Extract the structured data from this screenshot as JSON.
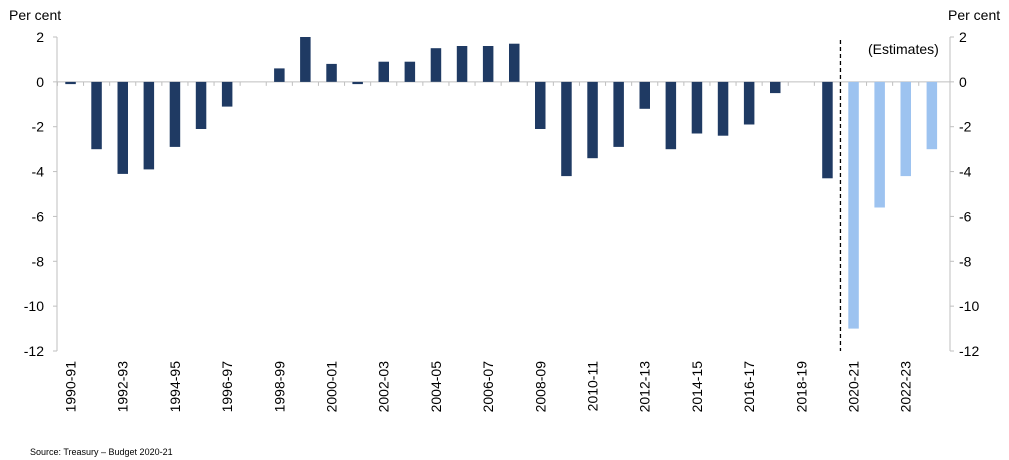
{
  "chart_data": {
    "type": "bar",
    "y_unit_left": "Per cent",
    "y_unit_right": "Per cent",
    "ylim": [
      -12,
      2
    ],
    "yticks": [
      2,
      0,
      -2,
      -4,
      -6,
      -8,
      -10,
      -12
    ],
    "grid": false,
    "legend": "none",
    "annotation": "(Estimates)",
    "categories": [
      "1990-91",
      "1991-92",
      "1992-93",
      "1993-94",
      "1994-95",
      "1995-96",
      "1996-97",
      "1997-98",
      "1998-99",
      "1999-00",
      "2000-01",
      "2001-02",
      "2002-03",
      "2003-04",
      "2004-05",
      "2005-06",
      "2006-07",
      "2007-08",
      "2008-09",
      "2009-10",
      "2010-11",
      "2011-12",
      "2012-13",
      "2013-14",
      "2014-15",
      "2015-16",
      "2016-17",
      "2017-18",
      "2018-19",
      "2019-20",
      "2020-21",
      "2021-22",
      "2022-23",
      "2023-24"
    ],
    "shown_tick_labels": [
      "1990-91",
      "1992-93",
      "1994-95",
      "1996-97",
      "1998-99",
      "2000-01",
      "2002-03",
      "2004-05",
      "2006-07",
      "2008-09",
      "2010-11",
      "2012-13",
      "2014-15",
      "2016-17",
      "2018-19",
      "2020-21",
      "2022-23"
    ],
    "series": [
      {
        "values": [
          -0.1,
          -3.0,
          -4.1,
          -3.9,
          -2.9,
          -2.1,
          -1.1,
          0.0,
          0.6,
          2.0,
          0.8,
          -0.1,
          0.9,
          0.9,
          1.5,
          1.6,
          1.6,
          1.7,
          -2.1,
          -4.2,
          -3.4,
          -2.9,
          -1.2,
          -3.0,
          -2.3,
          -2.4,
          -1.9,
          -0.5,
          0.0,
          -4.3,
          null,
          null,
          null,
          null
        ],
        "color": "#1F3A63"
      },
      {
        "values": [
          null,
          null,
          null,
          null,
          null,
          null,
          null,
          null,
          null,
          null,
          null,
          null,
          null,
          null,
          null,
          null,
          null,
          null,
          null,
          null,
          null,
          null,
          null,
          null,
          null,
          null,
          null,
          null,
          null,
          null,
          -11.0,
          -5.6,
          -4.2,
          -3.0
        ],
        "color": "#9DC3F0"
      }
    ]
  },
  "source": "Source: Treasury – Budget 2020-21"
}
